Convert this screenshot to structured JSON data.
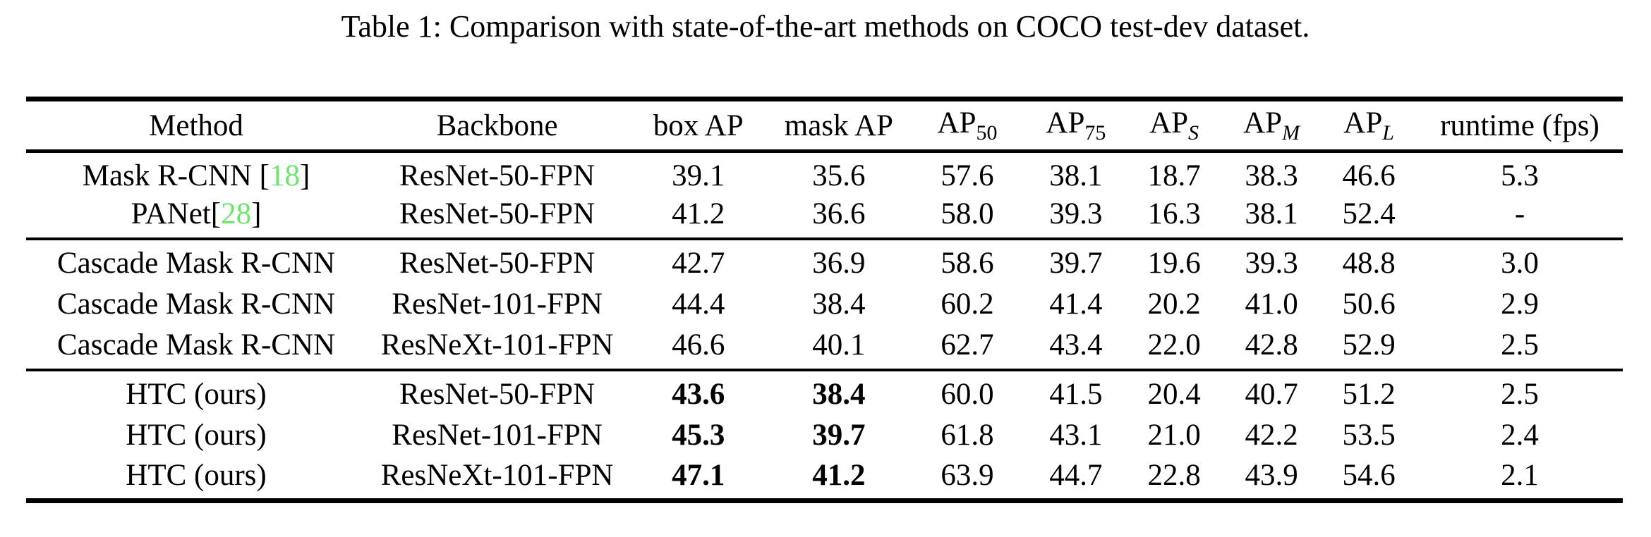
{
  "caption": "Table 1: Comparison with state-of-the-art methods on COCO test-dev dataset.",
  "colors": {
    "text": "#000000",
    "background": "#ffffff",
    "citation_green": "#6de56d"
  },
  "table": {
    "columns": [
      {
        "label": "Method",
        "sub": null,
        "italic_sub": false
      },
      {
        "label": "Backbone",
        "sub": null,
        "italic_sub": false
      },
      {
        "label": "box AP",
        "sub": null,
        "italic_sub": false
      },
      {
        "label": "mask AP",
        "sub": null,
        "italic_sub": false
      },
      {
        "label": "AP",
        "sub": "50",
        "italic_sub": false
      },
      {
        "label": "AP",
        "sub": "75",
        "italic_sub": false
      },
      {
        "label": "AP",
        "sub": "S",
        "italic_sub": true
      },
      {
        "label": "AP",
        "sub": "M",
        "italic_sub": true
      },
      {
        "label": "AP",
        "sub": "L",
        "italic_sub": true
      },
      {
        "label": "runtime (fps)",
        "sub": null,
        "italic_sub": false
      }
    ],
    "groups": [
      {
        "rows": [
          {
            "method_parts": [
              {
                "text": "Mask R-CNN [",
                "citation": false
              },
              {
                "text": "18",
                "citation": true
              },
              {
                "text": "]",
                "citation": false
              }
            ],
            "backbone": "ResNet-50-FPN",
            "values": [
              "39.1",
              "35.6",
              "57.6",
              "38.1",
              "18.7",
              "38.3",
              "46.6",
              "5.3"
            ],
            "bold_values": []
          },
          {
            "method_parts": [
              {
                "text": "PANet[",
                "citation": false
              },
              {
                "text": "28",
                "citation": true
              },
              {
                "text": "]",
                "citation": false
              }
            ],
            "backbone": "ResNet-50-FPN",
            "values": [
              "41.2",
              "36.6",
              "58.0",
              "39.3",
              "16.3",
              "38.1",
              "52.4",
              "-"
            ],
            "bold_values": []
          }
        ]
      },
      {
        "rows": [
          {
            "method_parts": [
              {
                "text": "Cascade Mask R-CNN",
                "citation": false
              }
            ],
            "backbone": "ResNet-50-FPN",
            "values": [
              "42.7",
              "36.9",
              "58.6",
              "39.7",
              "19.6",
              "39.3",
              "48.8",
              "3.0"
            ],
            "bold_values": []
          },
          {
            "method_parts": [
              {
                "text": "Cascade Mask R-CNN",
                "citation": false
              }
            ],
            "backbone": "ResNet-101-FPN",
            "values": [
              "44.4",
              "38.4",
              "60.2",
              "41.4",
              "20.2",
              "41.0",
              "50.6",
              "2.9"
            ],
            "bold_values": []
          },
          {
            "method_parts": [
              {
                "text": "Cascade Mask R-CNN",
                "citation": false
              }
            ],
            "backbone": "ResNeXt-101-FPN",
            "values": [
              "46.6",
              "40.1",
              "62.7",
              "43.4",
              "22.0",
              "42.8",
              "52.9",
              "2.5"
            ],
            "bold_values": []
          }
        ]
      },
      {
        "rows": [
          {
            "method_parts": [
              {
                "text": "HTC (ours)",
                "citation": false
              }
            ],
            "backbone": "ResNet-50-FPN",
            "values": [
              "43.6",
              "38.4",
              "60.0",
              "41.5",
              "20.4",
              "40.7",
              "51.2",
              "2.5"
            ],
            "bold_values": [
              0,
              1
            ]
          },
          {
            "method_parts": [
              {
                "text": "HTC (ours)",
                "citation": false
              }
            ],
            "backbone": "ResNet-101-FPN",
            "values": [
              "45.3",
              "39.7",
              "61.8",
              "43.1",
              "21.0",
              "42.2",
              "53.5",
              "2.4"
            ],
            "bold_values": [
              0,
              1
            ]
          },
          {
            "method_parts": [
              {
                "text": "HTC (ours)",
                "citation": false
              }
            ],
            "backbone": "ResNeXt-101-FPN",
            "values": [
              "47.1",
              "41.2",
              "63.9",
              "44.7",
              "22.8",
              "43.9",
              "54.6",
              "2.1"
            ],
            "bold_values": [
              0,
              1
            ]
          }
        ]
      }
    ]
  }
}
